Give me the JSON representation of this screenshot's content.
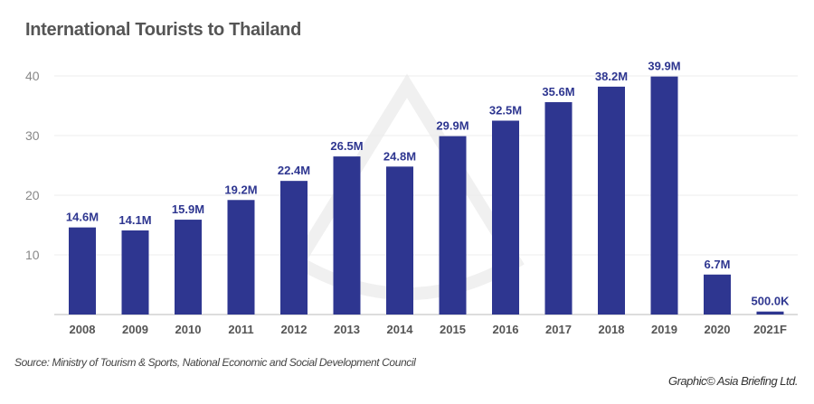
{
  "chart_data": {
    "type": "bar",
    "title": "International Tourists to Thailand",
    "xlabel": "",
    "ylabel": "",
    "ylim": [
      0,
      42
    ],
    "yticks": [
      10,
      20,
      30,
      40
    ],
    "grid": true,
    "categories": [
      "2008",
      "2009",
      "2010",
      "2011",
      "2012",
      "2013",
      "2014",
      "2015",
      "2016",
      "2017",
      "2018",
      "2019",
      "2020",
      "2021F"
    ],
    "values": [
      14.6,
      14.1,
      15.9,
      19.2,
      22.4,
      26.5,
      24.8,
      29.9,
      32.5,
      35.6,
      38.2,
      39.9,
      6.7,
      0.5
    ],
    "data_labels": [
      "14.6M",
      "14.1M",
      "15.9M",
      "19.2M",
      "22.4M",
      "26.5M",
      "24.8M",
      "29.9M",
      "32.5M",
      "35.6M",
      "38.2M",
      "39.9M",
      "6.7M",
      "500.0K"
    ],
    "bar_color": "#2e3690"
  },
  "source": "Source: Ministry of Tourism & Sports, National Economic and Social Development Council",
  "credit": "Graphic© Asia Briefing Ltd."
}
